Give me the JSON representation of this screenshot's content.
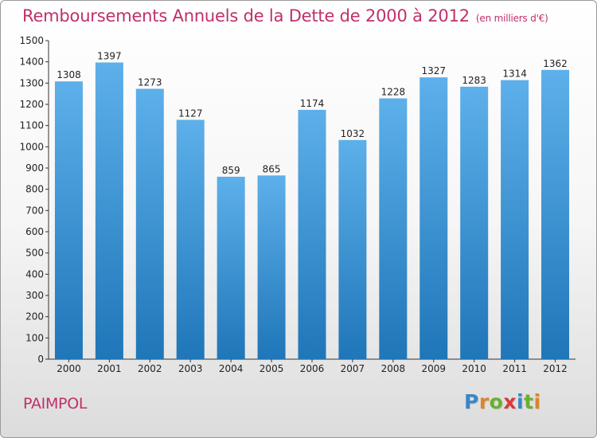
{
  "title": "Remboursements Annuels de la Dette de 2000 à 2012",
  "unit_note": "(en milliers d'€)",
  "commune": "PAIMPOL",
  "logo": {
    "text": "Proxiti",
    "letter_colors": [
      "#3a86c8",
      "#e0832a",
      "#6ab030",
      "#d83a3a",
      "#3a86c8",
      "#6ab030",
      "#e0832a"
    ]
  },
  "colors": {
    "title": "#c0306a",
    "bar_top": "#5db0ea",
    "bar_bottom": "#1f76b8"
  },
  "chart_data": {
    "type": "bar",
    "title": "Remboursements Annuels de la Dette de 2000 à 2012",
    "categories": [
      "2000",
      "2001",
      "2002",
      "2003",
      "2004",
      "2005",
      "2006",
      "2007",
      "2008",
      "2009",
      "2010",
      "2011",
      "2012"
    ],
    "values": [
      1308,
      1397,
      1273,
      1127,
      859,
      865,
      1174,
      1032,
      1228,
      1327,
      1283,
      1314,
      1362
    ],
    "data_labels": [
      "1308",
      "1397",
      "1273",
      "1127",
      "859",
      "865",
      "1174",
      "1032",
      "1228",
      "1327",
      "1283",
      "1314",
      "1362"
    ],
    "ylim": [
      0,
      1500
    ],
    "yticks": [
      0,
      100,
      200,
      300,
      400,
      500,
      600,
      700,
      800,
      900,
      1000,
      1100,
      1200,
      1300,
      1400,
      1500
    ],
    "grid": false,
    "legend": "none"
  }
}
